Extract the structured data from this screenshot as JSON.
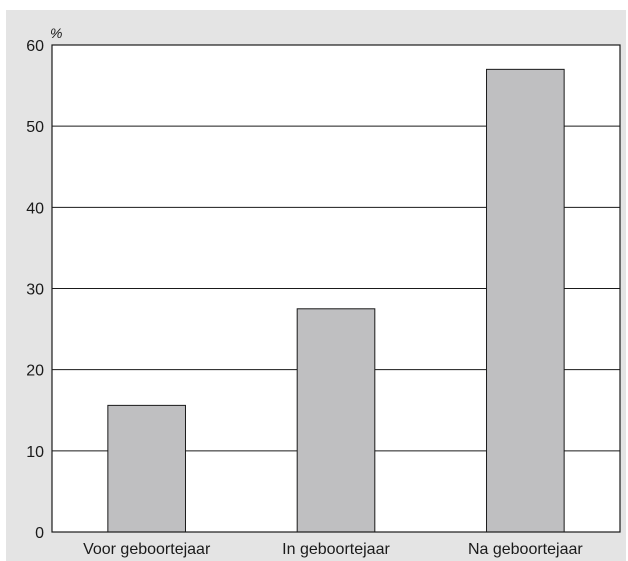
{
  "chart_data": {
    "type": "bar",
    "title": "",
    "xlabel": "",
    "ylabel": "",
    "unit": "%",
    "categories": [
      "Voor geboortejaar",
      "In geboortejaar",
      "Na geboortejaar"
    ],
    "values": [
      15.6,
      27.5,
      57
    ],
    "ylim": [
      0,
      60
    ],
    "yticks": [
      "0",
      "10",
      "20",
      "30",
      "40",
      "50",
      "60"
    ],
    "grid": true,
    "legend": "none",
    "colors": {
      "background": "#e4e4e4",
      "plot": "#ffffff",
      "bar": "#bfbfc1",
      "stroke": "#1a1a1a"
    }
  }
}
